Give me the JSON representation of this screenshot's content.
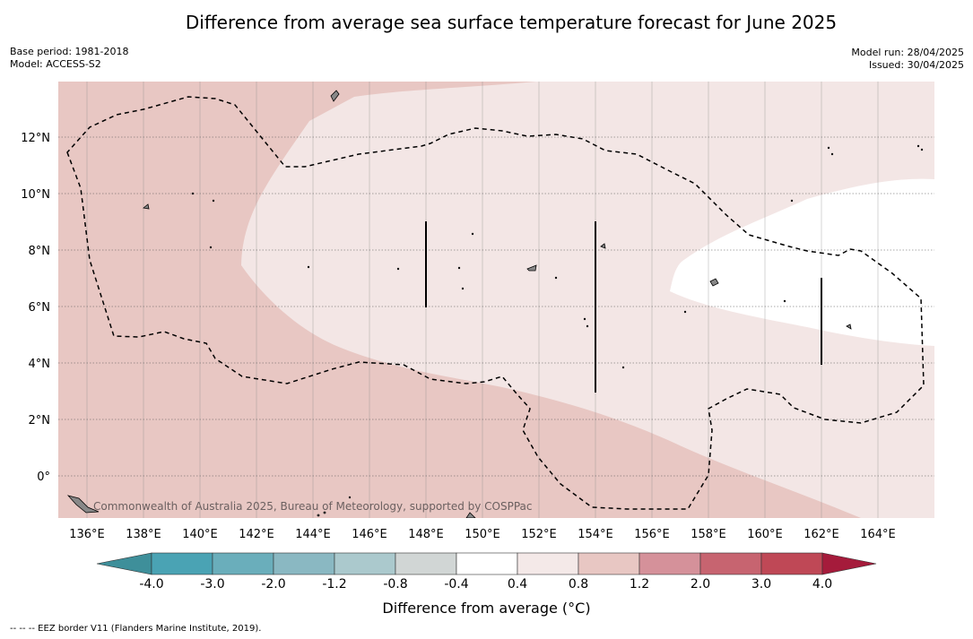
{
  "title": "Difference from average sea surface temperature forecast for June 2025",
  "meta_left": {
    "base_period": "Base period: 1981-2018",
    "model": "Model: ACCESS-S2"
  },
  "meta_right": {
    "model_run": "Model run: 28/04/2025",
    "issued": "Issued: 30/04/2025"
  },
  "copyright": "Commonwealth of Australia 2025, Bureau of Meteorology, supported by COSPPac",
  "map": {
    "lon_ticks": [
      "136°E",
      "138°E",
      "140°E",
      "142°E",
      "144°E",
      "146°E",
      "148°E",
      "150°E",
      "152°E",
      "154°E",
      "156°E",
      "158°E",
      "160°E",
      "162°E",
      "164°E"
    ],
    "lat_ticks": [
      "12°N",
      "10°N",
      "8°N",
      "6°N",
      "4°N",
      "2°N",
      "0°"
    ],
    "colors": {
      "band_1p2_2p0": "#e8c7c3",
      "band_0p8_1p2": "#f3e6e5",
      "band_0p4_0p8": "#ffffff",
      "land": "#888888",
      "eez_border": "#000000"
    }
  },
  "colorbar": {
    "ticks": [
      "-4.0",
      "-3.0",
      "-2.0",
      "-1.2",
      "-0.8",
      "-0.4",
      "0.4",
      "0.8",
      "1.2",
      "2.0",
      "3.0",
      "4.0"
    ],
    "colors": [
      "#3e8f9a",
      "#4aa3b4",
      "#6aaebb",
      "#8ab8c2",
      "#abc9cd",
      "#d1d6d5",
      "#ffffff",
      "#f4e9e8",
      "#e8c7c3",
      "#d5919a",
      "#c76470",
      "#bf4856",
      "#a51b3b"
    ],
    "label": "Difference from average (°C)"
  },
  "footnote": "--  --  -- EEZ border V11 (Flanders Marine Institute, 2019)."
}
